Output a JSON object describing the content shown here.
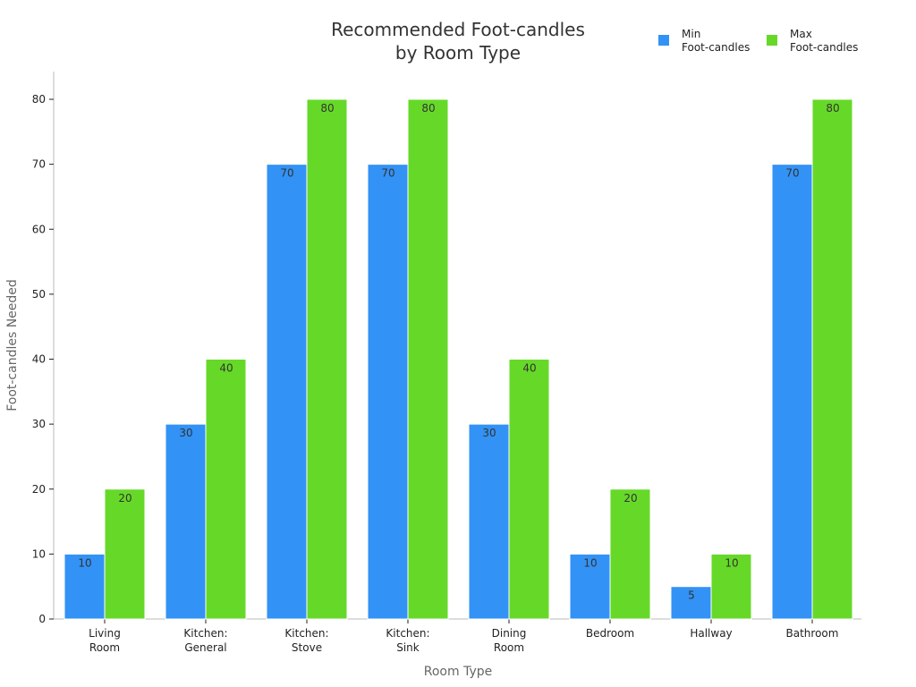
{
  "chart_data": {
    "type": "bar",
    "title": [
      "Recommended Foot-candles",
      "by Room Type"
    ],
    "xlabel": "Room Type",
    "ylabel": "Foot-candles Needed",
    "categories": [
      [
        "Living",
        "Room"
      ],
      [
        "Kitchen:",
        "General"
      ],
      [
        "Kitchen:",
        "Stove"
      ],
      [
        "Kitchen:",
        "Sink"
      ],
      [
        "Dining",
        "Room"
      ],
      [
        "Bedroom"
      ],
      [
        "Hallway"
      ],
      [
        "Bathroom"
      ]
    ],
    "series": [
      {
        "name": [
          "Min",
          "Foot-candles"
        ],
        "color": "#3392f5",
        "values": [
          10,
          30,
          70,
          70,
          30,
          10,
          5,
          70
        ]
      },
      {
        "name": [
          "Max",
          "Foot-candles"
        ],
        "color": "#66d928",
        "values": [
          20,
          40,
          80,
          80,
          40,
          20,
          10,
          80
        ]
      }
    ],
    "ylim": [
      0,
      84
    ],
    "yticks": [
      0,
      10,
      20,
      30,
      40,
      50,
      60,
      70,
      80
    ],
    "grid": false,
    "legend": "top-right",
    "data_labels": true
  }
}
